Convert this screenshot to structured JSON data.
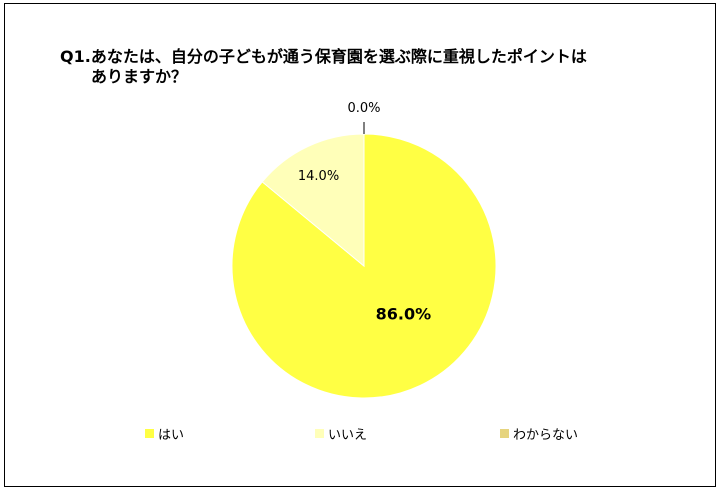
{
  "chart_data": {
    "type": "pie",
    "title_line1": "Q1.あなたは、自分の子どもが通う保育園を選ぶ際に重視したポイントは",
    "title_line2": "ありますか？",
    "categories": [
      "はい",
      "いいえ",
      "わからない"
    ],
    "values": [
      86.0,
      14.0,
      0.0
    ],
    "data_labels": [
      "86.0%",
      "14.0%",
      "0.0%"
    ],
    "colors": [
      "#FFFF44",
      "#FFFFB9",
      "#E6D47E"
    ],
    "legend_position": "bottom"
  }
}
